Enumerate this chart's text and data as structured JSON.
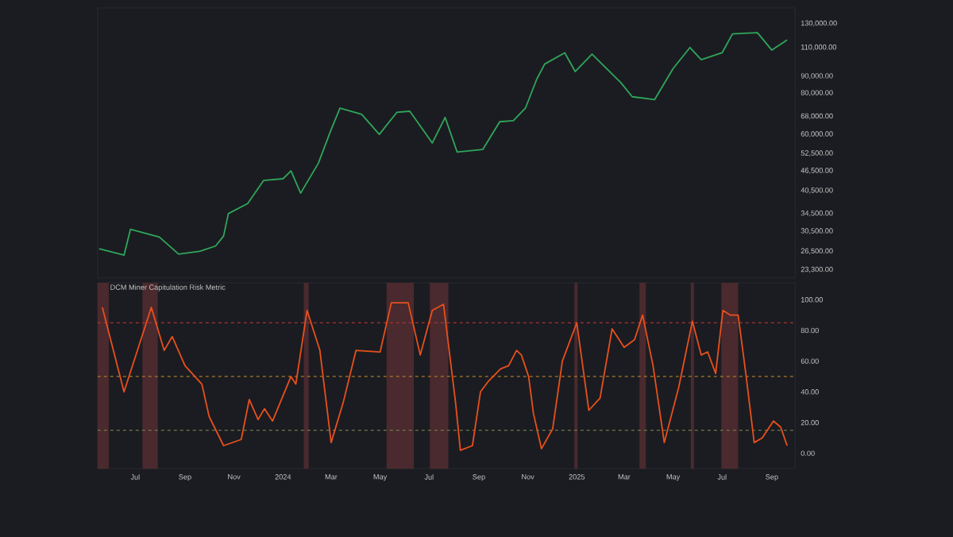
{
  "chart_data": [
    {
      "type": "line",
      "log": true,
      "tick_labels": "y",
      "xlim": [
        "2023-05-15",
        "2025-09-30"
      ],
      "ylim": [
        22000,
        145000
      ],
      "yticks": [
        {
          "value": 23300,
          "label": "23,300.00"
        },
        {
          "value": 26500,
          "label": "26,500.00"
        },
        {
          "value": 30500,
          "label": "30,500.00"
        },
        {
          "value": 34500,
          "label": "34,500.00"
        },
        {
          "value": 40500,
          "label": "40,500.00"
        },
        {
          "value": 46500,
          "label": "46,500.00"
        },
        {
          "value": 52500,
          "label": "52,500.00"
        },
        {
          "value": 60000,
          "label": "60,000.00"
        },
        {
          "value": 68000,
          "label": "68,000.00"
        },
        {
          "value": 80000,
          "label": "80,000.00"
        },
        {
          "value": 90000,
          "label": "90,000.00"
        },
        {
          "value": 110000,
          "label": "110,000.00"
        },
        {
          "value": 130000,
          "label": "130,000.00"
        }
      ],
      "series": [
        {
          "color": "#2fa65a",
          "x": [
            "2023-05-17",
            "2023-06-17",
            "2023-06-25",
            "2023-07-31",
            "2023-08-24",
            "2023-09-19",
            "2023-10-09",
            "2023-10-19",
            "2023-10-25",
            "2023-11-18",
            "2023-12-08",
            "2024-01-01",
            "2024-01-11",
            "2024-01-23",
            "2024-02-14",
            "2024-03-01",
            "2024-03-12",
            "2024-04-08",
            "2024-04-30",
            "2024-05-22",
            "2024-06-07",
            "2024-07-05",
            "2024-07-21",
            "2024-08-05",
            "2024-09-06",
            "2024-09-27",
            "2024-10-14",
            "2024-10-29",
            "2024-11-12",
            "2024-11-22",
            "2024-12-17",
            "2024-12-30",
            "2025-01-20",
            "2025-02-25",
            "2025-03-11",
            "2025-04-08",
            "2025-05-01",
            "2025-05-22",
            "2025-06-05",
            "2025-07-01",
            "2025-07-14",
            "2025-08-14",
            "2025-09-01",
            "2025-09-20"
          ],
          "values": [
            27000,
            25800,
            30900,
            29300,
            26000,
            26500,
            27500,
            29500,
            34500,
            37000,
            43500,
            44000,
            46500,
            39800,
            49000,
            62000,
            72000,
            69000,
            60000,
            70000,
            70500,
            56500,
            67500,
            53000,
            54000,
            65500,
            66000,
            72000,
            88000,
            98000,
            106000,
            93000,
            105000,
            86000,
            78000,
            76500,
            95000,
            110000,
            101000,
            106000,
            121000,
            122000,
            108000,
            116000
          ]
        }
      ]
    },
    {
      "type": "line",
      "title": "DCM Miner Capitulation Risk Metric",
      "xlim": [
        "2023-05-15",
        "2025-09-30"
      ],
      "ylim": [
        -10,
        111
      ],
      "xticks": [
        {
          "value": "2023-07-01",
          "label": "Jul"
        },
        {
          "value": "2023-09-01",
          "label": "Sep"
        },
        {
          "value": "2023-11-01",
          "label": "Nov"
        },
        {
          "value": "2024-01-01",
          "label": "2024"
        },
        {
          "value": "2024-03-01",
          "label": "Mar"
        },
        {
          "value": "2024-05-01",
          "label": "May"
        },
        {
          "value": "2024-07-01",
          "label": "Jul"
        },
        {
          "value": "2024-09-01",
          "label": "Sep"
        },
        {
          "value": "2024-11-01",
          "label": "Nov"
        },
        {
          "value": "2025-01-01",
          "label": "2025"
        },
        {
          "value": "2025-03-01",
          "label": "Mar"
        },
        {
          "value": "2025-05-01",
          "label": "May"
        },
        {
          "value": "2025-07-01",
          "label": "Jul"
        },
        {
          "value": "2025-09-01",
          "label": "Sep"
        }
      ],
      "yticks": [
        {
          "value": 0,
          "label": "0.00"
        },
        {
          "value": 20,
          "label": "20.00"
        },
        {
          "value": 40,
          "label": "40.00"
        },
        {
          "value": 60,
          "label": "60.00"
        },
        {
          "value": 80,
          "label": "80.00"
        },
        {
          "value": 100,
          "label": "100.00"
        }
      ],
      "bands": [
        {
          "axis": "x",
          "from": "2023-05-15",
          "to": "2023-05-29",
          "color": "#4a2a2e"
        },
        {
          "axis": "x",
          "from": "2023-07-10",
          "to": "2023-07-29",
          "color": "#4a2a2e"
        },
        {
          "axis": "x",
          "from": "2024-01-27",
          "to": "2024-02-02",
          "color": "#4a2a2e"
        },
        {
          "axis": "x",
          "from": "2024-05-09",
          "to": "2024-06-12",
          "color": "#4a2a2e"
        },
        {
          "axis": "x",
          "from": "2024-07-02",
          "to": "2024-07-25",
          "color": "#4a2a2e"
        },
        {
          "axis": "x",
          "from": "2024-12-29",
          "to": "2025-01-02",
          "color": "#4a2a2e"
        },
        {
          "axis": "x",
          "from": "2025-03-20",
          "to": "2025-03-28",
          "color": "#4a2a2e"
        },
        {
          "axis": "x",
          "from": "2025-05-23",
          "to": "2025-05-27",
          "color": "#4a2a2e"
        },
        {
          "axis": "x",
          "from": "2025-06-30",
          "to": "2025-07-21",
          "color": "#4a2a2e"
        }
      ],
      "ref_lines": [
        {
          "axis": "y",
          "value": 85,
          "color": "#a83232",
          "line_style": "dashed"
        },
        {
          "axis": "y",
          "value": 50,
          "color": "#a8782a",
          "line_style": "dashed"
        },
        {
          "axis": "y",
          "value": 15,
          "color": "#6e7a48",
          "line_style": "dashed"
        }
      ],
      "series": [
        {
          "color": "#e8501c",
          "x": [
            "2023-05-21",
            "2023-06-17",
            "2023-07-21",
            "2023-08-06",
            "2023-08-16",
            "2023-09-01",
            "2023-09-22",
            "2023-10-01",
            "2023-10-19",
            "2023-11-10",
            "2023-11-20",
            "2023-12-01",
            "2023-12-09",
            "2023-12-19",
            "2024-01-11",
            "2024-01-17",
            "2024-01-31",
            "2024-02-16",
            "2024-03-01",
            "2024-03-16",
            "2024-04-01",
            "2024-05-01",
            "2024-05-15",
            "2024-06-05",
            "2024-06-20",
            "2024-07-05",
            "2024-07-19",
            "2024-08-03",
            "2024-08-09",
            "2024-08-24",
            "2024-09-03",
            "2024-09-13",
            "2024-09-28",
            "2024-10-08",
            "2024-10-18",
            "2024-10-24",
            "2024-11-02",
            "2024-11-08",
            "2024-11-18",
            "2024-12-02",
            "2024-12-14",
            "2025-01-01",
            "2025-01-16",
            "2025-01-30",
            "2025-02-14",
            "2025-03-01",
            "2025-03-14",
            "2025-03-24",
            "2025-04-06",
            "2025-04-20",
            "2025-05-08",
            "2025-05-25",
            "2025-06-05",
            "2025-06-13",
            "2025-06-23",
            "2025-07-02",
            "2025-07-11",
            "2025-07-21",
            "2025-07-31",
            "2025-08-10",
            "2025-08-20",
            "2025-09-03",
            "2025-09-12",
            "2025-09-20"
          ],
          "values": [
            95,
            40,
            95,
            67,
            76,
            57,
            45,
            24,
            5,
            9,
            35,
            22,
            29,
            21,
            50,
            45,
            93,
            67,
            7,
            33,
            67,
            66,
            98,
            98,
            64,
            93,
            97,
            33,
            2,
            5,
            40,
            47,
            55,
            57,
            67,
            64,
            50,
            26,
            3,
            16,
            60,
            85,
            28,
            36,
            81,
            69,
            74,
            90,
            57,
            7,
            43,
            86,
            64,
            66,
            52,
            93,
            90,
            90,
            50,
            7,
            10,
            21,
            17,
            5
          ]
        }
      ]
    }
  ]
}
